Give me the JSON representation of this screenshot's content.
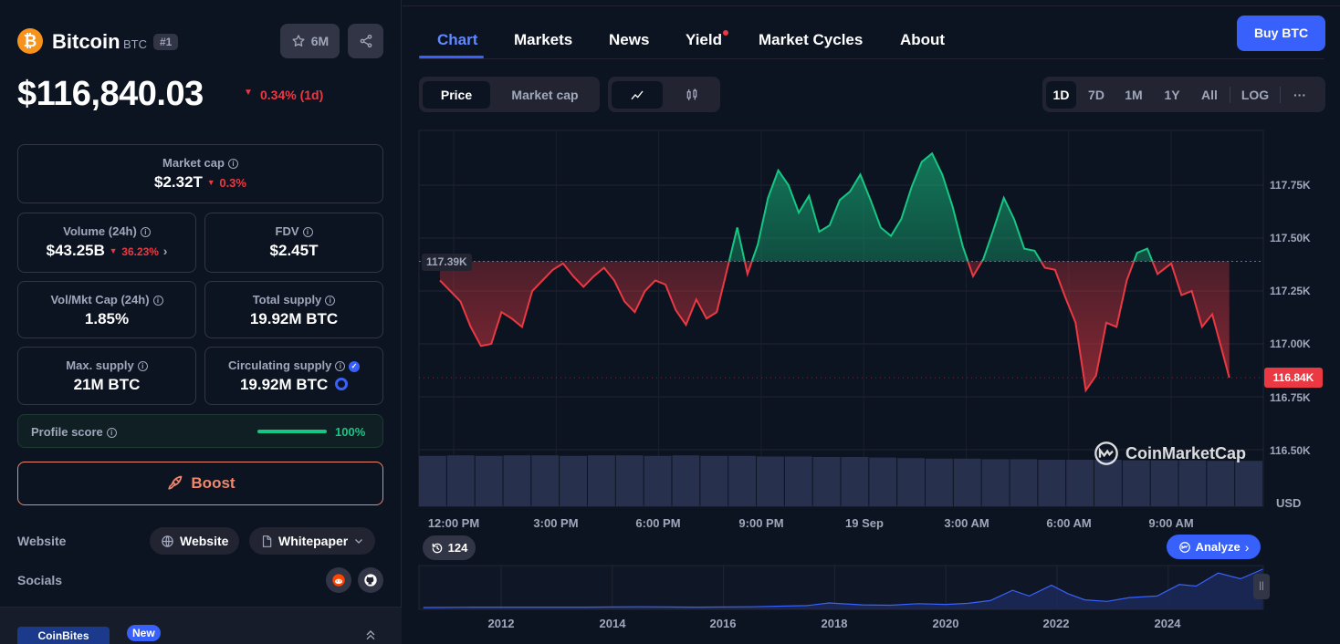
{
  "coin": {
    "name": "Bitcoin",
    "symbol": "BTC",
    "rank": "#1",
    "watch_count": "6M",
    "price": "$116,840.03",
    "change": "0.34% (1d)",
    "logo_glyph": "₿"
  },
  "stats": {
    "market_cap": {
      "label": "Market cap",
      "value": "$2.32T",
      "change": "0.3%"
    },
    "volume": {
      "label": "Volume (24h)",
      "value": "$43.25B",
      "change": "36.23%"
    },
    "fdv": {
      "label": "FDV",
      "value": "$2.45T"
    },
    "vol_mkt_cap": {
      "label": "Vol/Mkt Cap (24h)",
      "value": "1.85%"
    },
    "total_supply": {
      "label": "Total supply",
      "value": "19.92M BTC"
    },
    "max_supply": {
      "label": "Max. supply",
      "value": "21M BTC"
    },
    "circulating_supply": {
      "label": "Circulating supply",
      "value": "19.92M BTC"
    }
  },
  "profile_score": {
    "label": "Profile score",
    "value": "100%",
    "fraction": 1.0
  },
  "boost_label": "Boost",
  "links": {
    "website_label": "Website",
    "website_btn": "Website",
    "whitepaper_btn": "Whitepaper",
    "socials_label": "Socials"
  },
  "promo": {
    "brand": "CoinBites",
    "badge": "New"
  },
  "tabs": [
    "Chart",
    "Markets",
    "News",
    "Yield",
    "Market Cycles",
    "About"
  ],
  "buy_label": "Buy BTC",
  "toggles": {
    "price": "Price",
    "market_cap": "Market cap"
  },
  "ranges": [
    "1D",
    "7D",
    "1M",
    "1Y",
    "All"
  ],
  "log_label": "LOG",
  "more_label": "···",
  "chart": {
    "reference_label": "117.39K",
    "current_label": "116.84K",
    "currency": "USD",
    "watermark": "CoinMarketCap",
    "analyze_label": "Analyze",
    "history_count": "124",
    "nav_years": [
      "2012",
      "2014",
      "2016",
      "2018",
      "2020",
      "2022",
      "2024"
    ]
  },
  "chart_data": {
    "type": "line",
    "reference_price": 117390,
    "last_price": 116840,
    "ylim": [
      116400,
      118030
    ],
    "yticks": [
      "117.75K",
      "117.50K",
      "117.25K",
      "117.00K",
      "116.75K",
      "116.50K"
    ],
    "ytick_values": [
      117750,
      117500,
      117250,
      117000,
      116750,
      116500
    ],
    "xticks": [
      "12:00 PM",
      "3:00 PM",
      "6:00 PM",
      "9:00 PM",
      "19 Sep",
      "3:00 AM",
      "6:00 AM",
      "9:00 AM"
    ],
    "xtick_hours": [
      12,
      15,
      18,
      21,
      24,
      27,
      30,
      33
    ],
    "x_hours": [
      11.6,
      11.9,
      12.2,
      12.5,
      12.8,
      13.1,
      13.4,
      13.7,
      14.0,
      14.3,
      14.6,
      14.9,
      15.2,
      15.5,
      15.8,
      16.1,
      16.4,
      16.7,
      17.0,
      17.3,
      17.6,
      17.9,
      18.2,
      18.5,
      18.8,
      19.1,
      19.4,
      19.7,
      20.0,
      20.3,
      20.6,
      20.9,
      21.2,
      21.5,
      21.8,
      22.1,
      22.4,
      22.7,
      23.0,
      23.3,
      23.6,
      23.9,
      24.2,
      24.5,
      24.8,
      25.1,
      25.4,
      25.7,
      26.0,
      26.3,
      26.6,
      26.9,
      27.2,
      27.5,
      27.8,
      28.1,
      28.4,
      28.7,
      29.0,
      29.3,
      29.6,
      29.9,
      30.2,
      30.5,
      30.8,
      31.1,
      31.4,
      31.7,
      32.0,
      32.3,
      32.6,
      33.0,
      33.3,
      33.6,
      33.9,
      34.2,
      34.5,
      34.7
    ],
    "prices": [
      117300,
      117250,
      117200,
      117080,
      116990,
      117000,
      117150,
      117120,
      117080,
      117250,
      117300,
      117350,
      117380,
      117320,
      117270,
      117320,
      117360,
      117300,
      117200,
      117150,
      117250,
      117300,
      117280,
      117160,
      117090,
      117210,
      117120,
      117150,
      117350,
      117550,
      117330,
      117470,
      117690,
      117820,
      117750,
      117620,
      117700,
      117530,
      117560,
      117680,
      117720,
      117800,
      117680,
      117550,
      117510,
      117590,
      117740,
      117860,
      117900,
      117800,
      117650,
      117460,
      117320,
      117400,
      117540,
      117690,
      117590,
      117450,
      117440,
      117360,
      117350,
      117220,
      117100,
      116780,
      116850,
      117100,
      117080,
      117300,
      117430,
      117450,
      117330,
      117380,
      117230,
      117250,
      117080,
      117140,
      116960,
      116840
    ],
    "volume_level": [
      0.92,
      0.93,
      0.92,
      0.93,
      0.93,
      0.92,
      0.93,
      0.93,
      0.92,
      0.93,
      0.92,
      0.92,
      0.91,
      0.91,
      0.9,
      0.9,
      0.89,
      0.88,
      0.87,
      0.87,
      0.86,
      0.86,
      0.85,
      0.85,
      0.85,
      0.84,
      0.84,
      0.84,
      0.83,
      0.83
    ]
  },
  "history_data": {
    "x_years": [
      2010.6,
      2011.5,
      2012.5,
      2013.5,
      2014.5,
      2015.5,
      2016.5,
      2017.5,
      2017.9,
      2018.5,
      2019.0,
      2019.5,
      2020.0,
      2020.4,
      2020.8,
      2021.2,
      2021.5,
      2021.9,
      2022.2,
      2022.5,
      2022.9,
      2023.3,
      2023.8,
      2024.2,
      2024.5,
      2024.9,
      2025.3,
      2025.7
    ],
    "level": [
      0.0,
      0.01,
      0.01,
      0.01,
      0.02,
      0.01,
      0.02,
      0.05,
      0.12,
      0.07,
      0.06,
      0.1,
      0.08,
      0.11,
      0.18,
      0.45,
      0.3,
      0.58,
      0.36,
      0.2,
      0.16,
      0.26,
      0.3,
      0.6,
      0.56,
      0.9,
      0.75,
      1.0
    ],
    "year_ticks": [
      2012,
      2014,
      2016,
      2018,
      2020,
      2022,
      2024
    ]
  }
}
